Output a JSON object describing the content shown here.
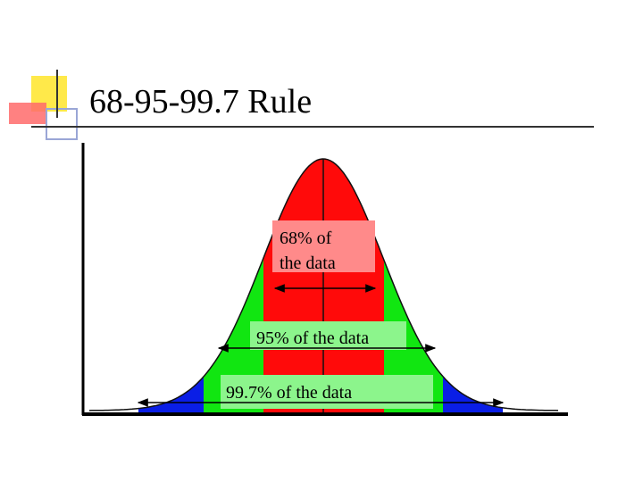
{
  "header": {
    "title": "68-95-99.7 Rule"
  },
  "labels": {
    "one_sigma": [
      "68% of",
      "the data"
    ],
    "two_sigma": "95% of the data",
    "three_sigma": "99.7% of the data"
  }
}
